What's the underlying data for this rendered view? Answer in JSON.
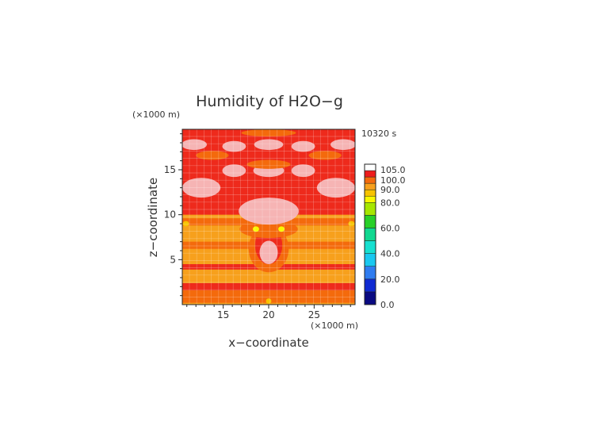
{
  "chart_data": {
    "type": "heatmap",
    "title": "Humidity of H2O−g",
    "time_label": "10320 s",
    "xlabel": "x−coordinate",
    "ylabel": "z−coordinate",
    "x_unit": "(×1000 m)",
    "y_unit": "(×1000 m)",
    "xlim": [
      10.5,
      29.5
    ],
    "ylim": [
      0,
      19.5
    ],
    "x_ticks": [
      "15",
      "20",
      "25"
    ],
    "y_ticks": [
      "5",
      "10",
      "15"
    ],
    "grid": true,
    "colorbar": {
      "labels": [
        "0.0",
        "20.0",
        "40.0",
        "60.0",
        "80.0",
        "90.0",
        "100.0",
        "105.0"
      ],
      "levels": [
        {
          "value": 0,
          "color": "#0a0a82"
        },
        {
          "value": 10,
          "color": "#0f2ad2"
        },
        {
          "value": 20,
          "color": "#2f7cf0"
        },
        {
          "value": 30,
          "color": "#19c8f0"
        },
        {
          "value": 40,
          "color": "#16e0d0"
        },
        {
          "value": 50,
          "color": "#10d890"
        },
        {
          "value": 60,
          "color": "#28d028"
        },
        {
          "value": 70,
          "color": "#a6e600"
        },
        {
          "value": 80,
          "color": "#f8f800"
        },
        {
          "value": 85,
          "color": "#f7c300"
        },
        {
          "value": 90,
          "color": "#f7a01c"
        },
        {
          "value": 95,
          "color": "#f46a0c"
        },
        {
          "value": 100,
          "color": "#ee1c1c"
        },
        {
          "value": 105,
          "color": "#ffffff"
        }
      ]
    },
    "field_colors": {
      "above_100": "#f6b4b4",
      "level_100": "#ee2a1c",
      "level_95": "#f46a0c",
      "level_90": "#f7a01c",
      "level_85": "#f7c300",
      "level_80": "#f8f800"
    },
    "regions": [
      {
        "level": "level_95",
        "shape": "band",
        "z": [
          0.2,
          1.8
        ]
      },
      {
        "level": "level_100",
        "shape": "band",
        "z": [
          1.6,
          2.4
        ]
      },
      {
        "level": "level_90",
        "shape": "band",
        "z": [
          2.4,
          4.6
        ]
      },
      {
        "level": "level_100",
        "shape": "band",
        "z": [
          3.9,
          4.5
        ]
      },
      {
        "level": "level_90",
        "shape": "band",
        "z": [
          4.6,
          10.2
        ]
      },
      {
        "level": "level_95",
        "shape": "band",
        "z": [
          6.2,
          7.0
        ]
      },
      {
        "level": "level_95",
        "shape": "band",
        "z": [
          8.8,
          9.6
        ]
      },
      {
        "level": "level_100",
        "shape": "band",
        "z": [
          10.0,
          19.5
        ]
      },
      {
        "level": "level_95",
        "shape": "ellipse",
        "cx": 20.0,
        "cz": 6.2,
        "rx": 2.2,
        "rz": 2.6
      },
      {
        "level": "level_100",
        "shape": "ellipse",
        "cx": 20.0,
        "cz": 6.6,
        "rx": 1.5,
        "rz": 2.1
      },
      {
        "level": "above_100",
        "shape": "ellipse",
        "cx": 20.0,
        "cz": 5.8,
        "rx": 1.0,
        "rz": 1.3
      },
      {
        "level": "level_95",
        "shape": "ellipse",
        "cx": 20.0,
        "cz": 8.4,
        "rx": 3.2,
        "rz": 1.0
      },
      {
        "level": "above_100",
        "shape": "ellipse",
        "cx": 20.0,
        "cz": 10.4,
        "rx": 3.3,
        "rz": 1.5
      },
      {
        "level": "above_100",
        "shape": "ellipse",
        "cx": 12.6,
        "cz": 13.0,
        "rx": 2.1,
        "rz": 1.1
      },
      {
        "level": "above_100",
        "shape": "ellipse",
        "cx": 27.4,
        "cz": 13.0,
        "rx": 2.1,
        "rz": 1.1
      },
      {
        "level": "above_100",
        "shape": "ellipse",
        "cx": 16.2,
        "cz": 14.9,
        "rx": 1.3,
        "rz": 0.7
      },
      {
        "level": "above_100",
        "shape": "ellipse",
        "cx": 20.0,
        "cz": 14.9,
        "rx": 1.7,
        "rz": 0.7
      },
      {
        "level": "above_100",
        "shape": "ellipse",
        "cx": 23.8,
        "cz": 14.9,
        "rx": 1.3,
        "rz": 0.7
      },
      {
        "level": "level_95",
        "shape": "ellipse",
        "cx": 20.0,
        "cz": 15.6,
        "rx": 2.4,
        "rz": 0.5
      },
      {
        "level": "level_95",
        "shape": "ellipse",
        "cx": 13.8,
        "cz": 16.6,
        "rx": 1.8,
        "rz": 0.5
      },
      {
        "level": "level_95",
        "shape": "ellipse",
        "cx": 26.2,
        "cz": 16.6,
        "rx": 1.8,
        "rz": 0.5
      },
      {
        "level": "above_100",
        "shape": "ellipse",
        "cx": 11.8,
        "cz": 17.8,
        "rx": 1.4,
        "rz": 0.6
      },
      {
        "level": "above_100",
        "shape": "ellipse",
        "cx": 16.2,
        "cz": 17.6,
        "rx": 1.3,
        "rz": 0.6
      },
      {
        "level": "above_100",
        "shape": "ellipse",
        "cx": 20.0,
        "cz": 17.8,
        "rx": 1.6,
        "rz": 0.6
      },
      {
        "level": "above_100",
        "shape": "ellipse",
        "cx": 23.8,
        "cz": 17.6,
        "rx": 1.3,
        "rz": 0.6
      },
      {
        "level": "above_100",
        "shape": "ellipse",
        "cx": 28.2,
        "cz": 17.8,
        "rx": 1.4,
        "rz": 0.6
      },
      {
        "level": "level_95",
        "shape": "ellipse",
        "cx": 20.0,
        "cz": 19.1,
        "rx": 3.0,
        "rz": 0.4
      },
      {
        "level": "level_80",
        "shape": "ellipse",
        "cx": 18.6,
        "cz": 8.4,
        "rx": 0.35,
        "rz": 0.3
      },
      {
        "level": "level_80",
        "shape": "ellipse",
        "cx": 21.4,
        "cz": 8.4,
        "rx": 0.35,
        "rz": 0.3
      },
      {
        "level": "level_85",
        "shape": "ellipse",
        "cx": 10.9,
        "cz": 9.0,
        "rx": 0.35,
        "rz": 0.3
      },
      {
        "level": "level_85",
        "shape": "ellipse",
        "cx": 29.1,
        "cz": 9.0,
        "rx": 0.35,
        "rz": 0.3
      },
      {
        "level": "level_85",
        "shape": "ellipse",
        "cx": 20.0,
        "cz": 0.4,
        "rx": 0.3,
        "rz": 0.3
      }
    ]
  }
}
